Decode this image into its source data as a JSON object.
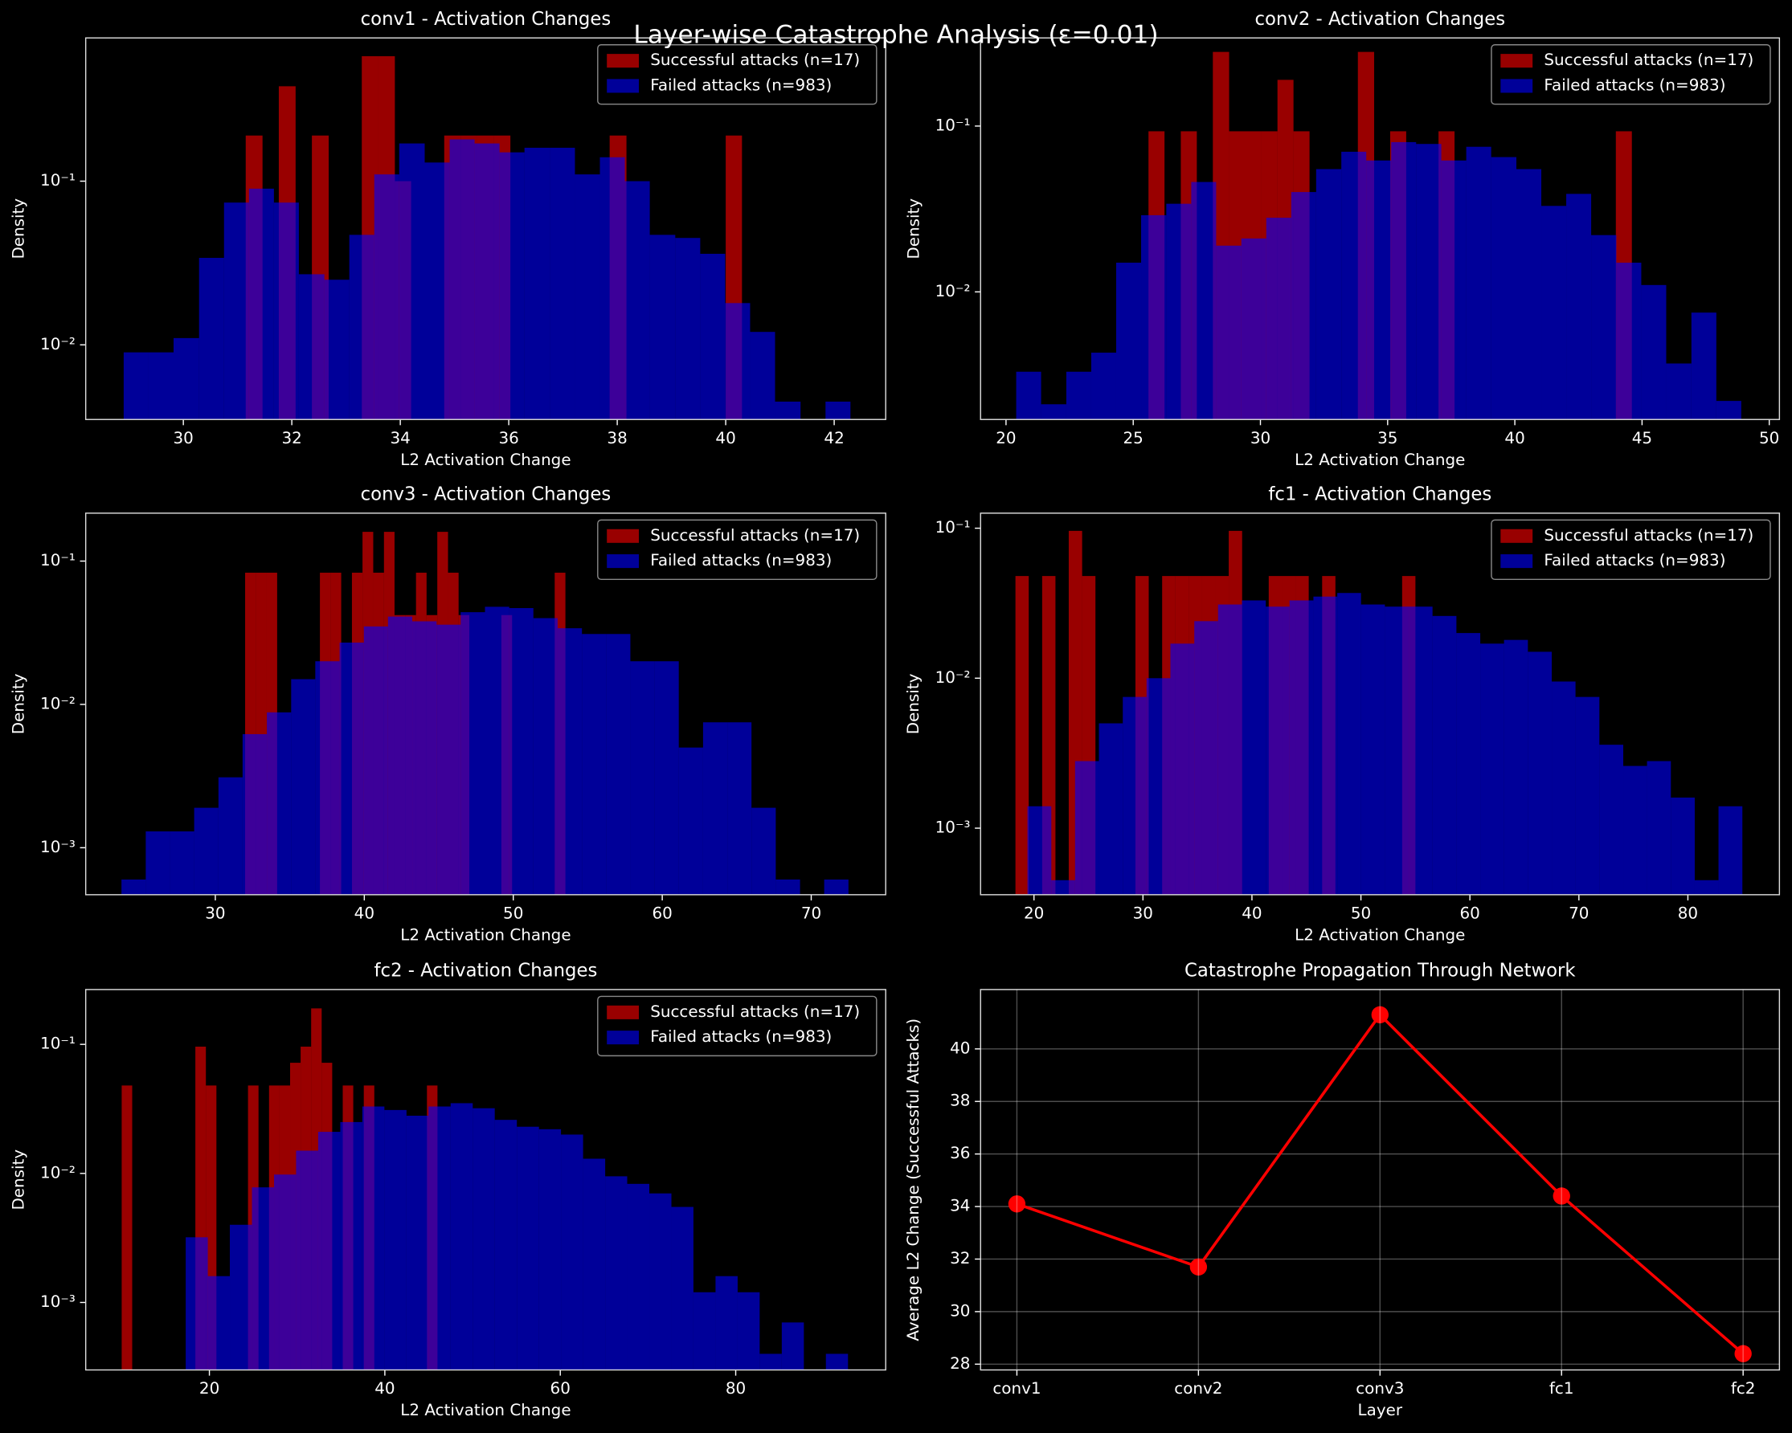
{
  "title": "Layer-wise Catastrophe Analysis (ε=0.01)",
  "chart_data": [
    {
      "type": "histogram",
      "title": "conv1 - Activation Changes",
      "xlabel": "L2 Activation Change",
      "ylabel": "Density",
      "log_y": true,
      "alpha": 0.6,
      "legend": "upper right",
      "xlim": [
        28.2,
        42.95
      ],
      "ylim": [
        0.0035,
        0.75
      ],
      "xticks": [
        30,
        32,
        34,
        36,
        38,
        40,
        42
      ],
      "yticks": [
        {
          "value": 0.01,
          "label": "10⁻²"
        },
        {
          "value": 0.1,
          "label": "10⁻¹"
        }
      ],
      "series": [
        {
          "name": "Successful attacks (n=17)",
          "color": "red",
          "bins": [
            31.15,
            31.46,
            31.76,
            32.07,
            32.37,
            32.68,
            32.98,
            33.29,
            33.59,
            33.9,
            34.2,
            34.51,
            34.81,
            35.12,
            35.42,
            35.73,
            36.03,
            36.34,
            36.64,
            36.95,
            37.25,
            37.56,
            37.86,
            38.17,
            38.47,
            38.78,
            39.08,
            39.39,
            39.69,
            40.0,
            40.3
          ],
          "values": [
            0.19,
            0,
            0.38,
            0,
            0.19,
            0,
            0,
            0.58,
            0.58,
            0.1,
            0,
            0,
            0.19,
            0.19,
            0.19,
            0.19,
            0,
            0,
            0,
            0,
            0,
            0,
            0.19,
            0,
            0,
            0,
            0,
            0,
            0,
            0.19
          ]
        },
        {
          "name": "Failed attacks (n=983)",
          "color": "blue",
          "bins": [
            28.9,
            29.36,
            29.82,
            30.29,
            30.75,
            31.21,
            31.67,
            32.13,
            32.6,
            33.06,
            33.52,
            33.98,
            34.45,
            34.91,
            35.37,
            35.83,
            36.29,
            36.76,
            37.22,
            37.68,
            38.14,
            38.6,
            39.07,
            39.53,
            39.99,
            40.45,
            40.91,
            41.38,
            41.84,
            42.3
          ],
          "values": [
            0.009,
            0.009,
            0.011,
            0.034,
            0.074,
            0.09,
            0.074,
            0.027,
            0.025,
            0.047,
            0.11,
            0.17,
            0.13,
            0.18,
            0.17,
            0.15,
            0.16,
            0.16,
            0.11,
            0.14,
            0.1,
            0.047,
            0.045,
            0.036,
            0.018,
            0.012,
            0.0045,
            0,
            0.0045
          ]
        }
      ]
    },
    {
      "type": "histogram",
      "title": "conv2 - Activation Changes",
      "xlabel": "L2 Activation Change",
      "ylabel": "Density",
      "log_y": true,
      "alpha": 0.6,
      "legend": "upper right",
      "xlim": [
        19.0,
        50.4
      ],
      "ylim": [
        0.0017,
        0.34
      ],
      "xticks": [
        20,
        25,
        30,
        35,
        40,
        45,
        50
      ],
      "yticks": [
        {
          "value": 0.01,
          "label": "10⁻²"
        },
        {
          "value": 0.1,
          "label": "10⁻¹"
        }
      ],
      "series": [
        {
          "name": "Successful attacks (n=17)",
          "color": "red",
          "bins": [
            25.6,
            26.23,
            26.87,
            27.5,
            28.13,
            28.77,
            29.4,
            30.03,
            30.67,
            31.3,
            31.93,
            32.57,
            33.2,
            33.83,
            34.47,
            35.1,
            35.73,
            36.37,
            37.0,
            37.63,
            38.27,
            38.9,
            39.53,
            40.17,
            40.8,
            41.43,
            42.07,
            42.7,
            43.33,
            43.97,
            44.6
          ],
          "values": [
            0.093,
            0,
            0.093,
            0,
            0.28,
            0.093,
            0.093,
            0.093,
            0.19,
            0.093,
            0,
            0,
            0,
            0.28,
            0,
            0.093,
            0,
            0,
            0.093,
            0,
            0,
            0,
            0,
            0,
            0,
            0,
            0,
            0,
            0,
            0.093
          ]
        },
        {
          "name": "Failed attacks (n=983)",
          "color": "blue",
          "bins": [
            20.4,
            21.38,
            22.37,
            23.35,
            24.33,
            25.31,
            26.3,
            27.28,
            28.26,
            29.25,
            30.23,
            31.21,
            32.19,
            33.18,
            34.16,
            35.14,
            36.12,
            37.11,
            38.09,
            39.07,
            40.06,
            41.04,
            42.02,
            43.0,
            43.99,
            44.97,
            45.95,
            46.94,
            47.92,
            48.9
          ],
          "values": [
            0.0033,
            0.0021,
            0.0033,
            0.0043,
            0.015,
            0.029,
            0.034,
            0.046,
            0.019,
            0.021,
            0.028,
            0.04,
            0.055,
            0.07,
            0.062,
            0.08,
            0.078,
            0.062,
            0.075,
            0.065,
            0.055,
            0.033,
            0.039,
            0.022,
            0.015,
            0.011,
            0.0037,
            0.0075,
            0.0022
          ]
        }
      ]
    },
    {
      "type": "histogram",
      "title": "conv3 - Activation Changes",
      "xlabel": "L2 Activation Change",
      "ylabel": "Density",
      "log_y": true,
      "alpha": 0.6,
      "legend": "upper right",
      "xlim": [
        21.3,
        75.0
      ],
      "ylim": [
        0.00047,
        0.216
      ],
      "xticks": [
        30,
        40,
        50,
        60,
        70
      ],
      "yticks": [
        {
          "value": 0.001,
          "label": "10⁻³"
        },
        {
          "value": 0.01,
          "label": "10⁻²"
        },
        {
          "value": 0.1,
          "label": "10⁻¹"
        }
      ],
      "series": [
        {
          "name": "Successful attacks (n=17)",
          "color": "red",
          "bins": [
            32,
            32.72,
            33.43,
            34.15,
            34.87,
            35.58,
            36.3,
            37.02,
            37.73,
            38.45,
            39.17,
            39.88,
            40.6,
            41.32,
            42.03,
            42.75,
            43.47,
            44.18,
            44.9,
            45.62,
            46.33,
            47.05,
            47.77,
            48.48,
            49.2,
            49.92,
            50.63,
            51.35,
            52.07,
            52.78,
            53.5
          ],
          "values": [
            0.083,
            0.083,
            0.083,
            0,
            0,
            0,
            0,
            0.083,
            0.083,
            0,
            0.083,
            0.16,
            0.083,
            0.16,
            0.042,
            0.042,
            0.083,
            0.042,
            0.16,
            0.083,
            0.042,
            0,
            0,
            0,
            0.042,
            0,
            0,
            0,
            0,
            0.083
          ]
        },
        {
          "name": "Failed attacks (n=983)",
          "color": "blue",
          "bins": [
            23.7,
            25.33,
            26.95,
            28.58,
            30.21,
            31.83,
            33.46,
            35.09,
            36.71,
            38.34,
            39.97,
            41.59,
            43.22,
            44.85,
            46.47,
            48.1,
            49.73,
            51.35,
            52.98,
            54.61,
            56.23,
            57.86,
            59.49,
            61.11,
            62.74,
            64.37,
            65.99,
            67.62,
            69.25,
            70.87,
            72.5
          ],
          "values": [
            0.0006,
            0.0013,
            0.0013,
            0.0019,
            0.0031,
            0.0062,
            0.0088,
            0.015,
            0.02,
            0.027,
            0.035,
            0.041,
            0.038,
            0.036,
            0.044,
            0.048,
            0.047,
            0.04,
            0.034,
            0.031,
            0.031,
            0.02,
            0.02,
            0.005,
            0.0075,
            0.0075,
            0.0019,
            0.0006,
            0,
            0.0006
          ]
        }
      ]
    },
    {
      "type": "histogram",
      "title": "fc1 - Activation Changes",
      "xlabel": "L2 Activation Change",
      "ylabel": "Density",
      "log_y": true,
      "alpha": 0.6,
      "legend": "upper right",
      "xlim": [
        15.1,
        88.4
      ],
      "ylim": [
        0.00036,
        0.126
      ],
      "xticks": [
        20,
        30,
        40,
        50,
        60,
        70,
        80
      ],
      "yticks": [
        {
          "value": 0.001,
          "label": "10⁻³"
        },
        {
          "value": 0.01,
          "label": "10⁻²"
        },
        {
          "value": 0.1,
          "label": "10⁻¹"
        }
      ],
      "series": [
        {
          "name": "Successful attacks (n=17)",
          "color": "red",
          "bins": [
            18.3,
            19.52,
            20.75,
            21.97,
            23.19,
            24.42,
            25.64,
            26.86,
            28.09,
            29.31,
            30.53,
            31.76,
            32.98,
            34.2,
            35.43,
            36.65,
            37.87,
            39.1,
            40.32,
            41.54,
            42.77,
            43.99,
            45.21,
            46.44,
            47.66,
            48.88,
            50.11,
            51.33,
            52.55,
            53.78,
            55
          ],
          "values": [
            0.048,
            0,
            0.048,
            0,
            0.096,
            0.048,
            0,
            0,
            0,
            0.048,
            0,
            0.048,
            0.048,
            0.048,
            0.048,
            0.048,
            0.096,
            0,
            0,
            0.048,
            0.048,
            0.048,
            0,
            0.048,
            0,
            0,
            0,
            0,
            0,
            0.048
          ]
        },
        {
          "name": "Failed attacks (n=983)",
          "color": "blue",
          "bins": [
            19.4,
            21.59,
            23.77,
            25.96,
            28.15,
            30.33,
            32.52,
            34.71,
            36.89,
            39.08,
            41.27,
            43.45,
            45.64,
            47.83,
            50.01,
            52.2,
            54.39,
            56.57,
            58.76,
            60.95,
            63.13,
            65.32,
            67.51,
            69.69,
            71.88,
            74.07,
            76.25,
            78.44,
            80.63,
            82.81,
            85
          ],
          "values": [
            0.0014,
            0.00045,
            0.0028,
            0.005,
            0.0075,
            0.01,
            0.017,
            0.024,
            0.031,
            0.033,
            0.03,
            0.033,
            0.035,
            0.037,
            0.031,
            0.03,
            0.03,
            0.026,
            0.02,
            0.017,
            0.018,
            0.015,
            0.0095,
            0.0075,
            0.0036,
            0.0026,
            0.0028,
            0.0016,
            0.00045,
            0.0014
          ]
        }
      ]
    },
    {
      "type": "histogram",
      "title": "fc2 - Activation Changes",
      "xlabel": "L2 Activation Change",
      "ylabel": "Density",
      "log_y": true,
      "alpha": 0.6,
      "legend": "upper right",
      "xlim": [
        5.9,
        97.1
      ],
      "ylim": [
        0.0003,
        0.266
      ],
      "xticks": [
        20,
        40,
        60,
        80
      ],
      "yticks": [
        {
          "value": 0.001,
          "label": "10⁻³"
        },
        {
          "value": 0.01,
          "label": "10⁻²"
        },
        {
          "value": 0.1,
          "label": "10⁻¹"
        }
      ],
      "series": [
        {
          "name": "Successful attacks (n=17)",
          "color": "red",
          "bins": [
            10,
            11.2,
            12.4,
            13.6,
            14.8,
            16,
            17.2,
            18.4,
            19.6,
            20.8,
            22,
            23.2,
            24.4,
            25.6,
            26.8,
            28,
            29.2,
            30.4,
            31.6,
            32.8,
            34,
            35.2,
            36.4,
            37.6,
            38.8,
            40,
            41.2,
            42.4,
            43.6,
            44.8,
            46
          ],
          "values": [
            0.048,
            0,
            0,
            0,
            0,
            0,
            0,
            0.096,
            0.048,
            0,
            0,
            0,
            0.048,
            0,
            0.048,
            0.048,
            0.072,
            0.096,
            0.19,
            0.072,
            0,
            0.048,
            0,
            0.048,
            0,
            0,
            0,
            0,
            0,
            0.048
          ]
        },
        {
          "name": "Failed attacks (n=983)",
          "color": "blue",
          "bins": [
            17.3,
            19.82,
            22.33,
            24.85,
            27.37,
            29.88,
            32.4,
            34.92,
            37.43,
            39.95,
            42.47,
            44.98,
            47.5,
            50.02,
            52.53,
            55.05,
            57.57,
            60.08,
            62.6,
            65.12,
            67.63,
            70.15,
            72.67,
            75.18,
            77.7,
            80.22,
            82.73,
            85.25,
            87.77,
            90.28,
            92.8
          ],
          "values": [
            0.0032,
            0.0016,
            0.004,
            0.0078,
            0.0098,
            0.015,
            0.021,
            0.025,
            0.033,
            0.031,
            0.028,
            0.033,
            0.035,
            0.032,
            0.026,
            0.023,
            0.022,
            0.02,
            0.013,
            0.0095,
            0.0083,
            0.007,
            0.0055,
            0.0012,
            0.0016,
            0.0012,
            0.0004,
            0.0007,
            0,
            0.0004
          ]
        }
      ]
    },
    {
      "type": "line",
      "title": "Catastrophe Propagation Through Network",
      "xlabel": "Layer",
      "ylabel": "Average L2 Change (Successful Attacks)",
      "categories": [
        "conv1",
        "conv2",
        "conv3",
        "fc1",
        "fc2"
      ],
      "values": [
        34.1,
        31.7,
        41.3,
        34.4,
        28.4
      ],
      "color": "red",
      "marker": "o",
      "grid": true,
      "ylim": [
        27.78,
        42.26
      ],
      "yticks": [
        28,
        30,
        32,
        34,
        36,
        38,
        40
      ]
    }
  ]
}
